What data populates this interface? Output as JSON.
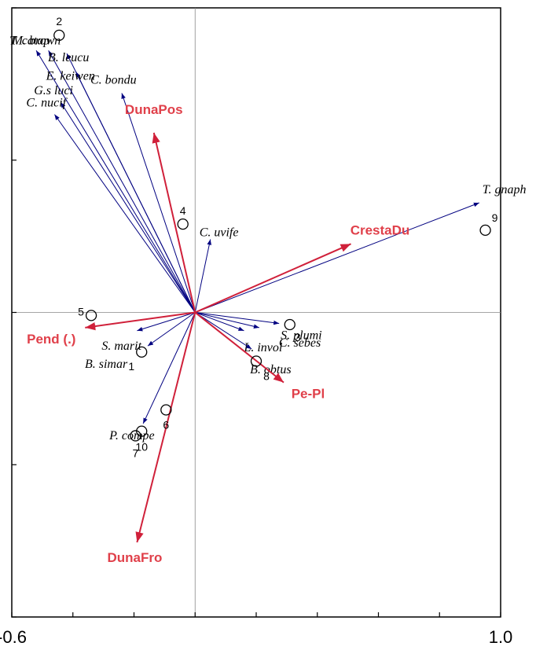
{
  "chart_data": {
    "type": "biplot",
    "xlim": [
      -0.6,
      1.0
    ],
    "ylim": [
      -1.0,
      1.0
    ],
    "xticks": [
      -0.6,
      -0.4,
      -0.2,
      0,
      0.2,
      0.4,
      0.6,
      0.8,
      1.0
    ],
    "xtick_labels": [
      {
        "value": -0.6,
        "label": "-0.6"
      },
      {
        "value": 1.0,
        "label": "1.0"
      }
    ],
    "yticks": [
      -1.0,
      -0.5,
      0,
      0.5,
      1.0
    ],
    "species": {
      "color": "#000080",
      "names": [
        "T. gnaph",
        "C. uvife",
        "C. bondu",
        "G.s luci",
        "C. nucif",
        "T. catap",
        "M. brown",
        "B. leucu",
        "E. keiwen",
        "S. plumi",
        "C. sebes",
        "L. invol",
        "B. obtus",
        "S. marit",
        "B. simar",
        "P. compe"
      ],
      "x": [
        0.93,
        0.05,
        -0.24,
        -0.44,
        -0.46,
        -0.52,
        -0.48,
        -0.42,
        -0.39,
        0.275,
        0.21,
        0.16,
        0.185,
        -0.19,
        -0.155,
        -0.17
      ],
      "y": [
        0.36,
        0.24,
        0.72,
        0.69,
        0.65,
        0.86,
        0.86,
        0.85,
        0.79,
        -0.036,
        -0.05,
        -0.06,
        -0.12,
        -0.06,
        -0.11,
        -0.365
      ]
    },
    "environment": {
      "color": "#d0203a",
      "names": [
        "DunaPos",
        "CrestaDu",
        "Pend (.)",
        "Pe-Pl",
        "DunaFro"
      ],
      "x": [
        -0.135,
        0.51,
        -0.36,
        0.29,
        -0.19
      ],
      "y": [
        0.59,
        0.225,
        -0.05,
        -0.23,
        -0.755
      ]
    },
    "samples": {
      "names": [
        "1",
        "2",
        "3",
        "4",
        "5",
        "6",
        "7",
        "8",
        "9",
        "10"
      ],
      "x": [
        -0.175,
        -0.445,
        0.31,
        -0.04,
        -0.34,
        -0.095,
        -0.195,
        0.2,
        0.95,
        -0.175
      ],
      "y": [
        -0.13,
        0.91,
        -0.04,
        0.29,
        -0.01,
        -0.32,
        -0.405,
        -0.16,
        0.27,
        -0.39
      ]
    }
  }
}
